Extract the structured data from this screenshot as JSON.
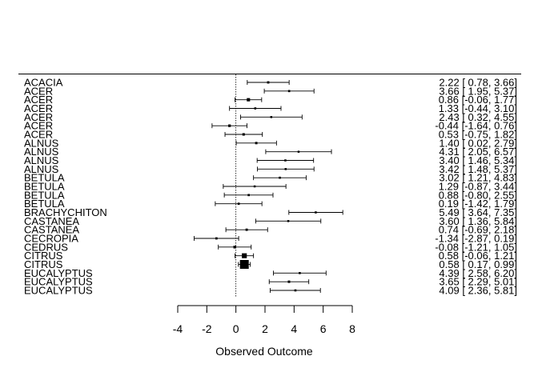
{
  "chart_data": {
    "type": "forest",
    "xlabel": "Observed Outcome",
    "xlim": [
      -4,
      8
    ],
    "xticks": [
      -4,
      -2,
      0,
      2,
      4,
      6,
      8
    ],
    "reference_line": 0,
    "studies": [
      {
        "label": "ACACIA",
        "estimate": 2.22,
        "ci_low": 0.78,
        "ci_high": 3.66,
        "text": "2.22 [ 0.78, 3.66]"
      },
      {
        "label": "ACER",
        "estimate": 3.66,
        "ci_low": 1.95,
        "ci_high": 5.37,
        "text": "3.66 [ 1.95, 5.37]"
      },
      {
        "label": "ACER",
        "estimate": 0.86,
        "ci_low": -0.06,
        "ci_high": 1.77,
        "text": "0.86 [-0.06, 1.77]"
      },
      {
        "label": "ACER",
        "estimate": 1.33,
        "ci_low": -0.44,
        "ci_high": 3.1,
        "text": "1.33 [-0.44, 3.10]"
      },
      {
        "label": "ACER",
        "estimate": 2.43,
        "ci_low": 0.32,
        "ci_high": 4.55,
        "text": "2.43 [ 0.32, 4.55]"
      },
      {
        "label": "ACER",
        "estimate": -0.44,
        "ci_low": -1.64,
        "ci_high": 0.76,
        "text": "-0.44 [-1.64, 0.76]"
      },
      {
        "label": "ACER",
        "estimate": 0.53,
        "ci_low": -0.75,
        "ci_high": 1.82,
        "text": "0.53 [-0.75, 1.82]"
      },
      {
        "label": "ALNUS",
        "estimate": 1.4,
        "ci_low": 0.02,
        "ci_high": 2.79,
        "text": "1.40 [ 0.02, 2.79]"
      },
      {
        "label": "ALNUS",
        "estimate": 4.31,
        "ci_low": 2.05,
        "ci_high": 6.57,
        "text": "4.31 [ 2.05, 6.57]"
      },
      {
        "label": "ALNUS",
        "estimate": 3.4,
        "ci_low": 1.46,
        "ci_high": 5.34,
        "text": "3.40 [ 1.46, 5.34]"
      },
      {
        "label": "ALNUS",
        "estimate": 3.42,
        "ci_low": 1.48,
        "ci_high": 5.37,
        "text": "3.42 [ 1.48, 5.37]"
      },
      {
        "label": "BETULA",
        "estimate": 3.02,
        "ci_low": 1.21,
        "ci_high": 4.83,
        "text": "3.02 [ 1.21, 4.83]"
      },
      {
        "label": "BETULA",
        "estimate": 1.29,
        "ci_low": -0.87,
        "ci_high": 3.44,
        "text": "1.29 [-0.87, 3.44]"
      },
      {
        "label": "BETULA",
        "estimate": 0.88,
        "ci_low": -0.8,
        "ci_high": 2.55,
        "text": "0.88 [-0.80, 2.55]"
      },
      {
        "label": "BETULA",
        "estimate": 0.19,
        "ci_low": -1.42,
        "ci_high": 1.79,
        "text": "0.19 [-1.42, 1.79]"
      },
      {
        "label": "BRACHYCHITON",
        "estimate": 5.49,
        "ci_low": 3.64,
        "ci_high": 7.35,
        "text": "5.49 [ 3.64, 7.35]"
      },
      {
        "label": "CASTANEA",
        "estimate": 3.6,
        "ci_low": 1.36,
        "ci_high": 5.84,
        "text": "3.60 [ 1.36, 5.84]"
      },
      {
        "label": "CASTANEA",
        "estimate": 0.74,
        "ci_low": -0.69,
        "ci_high": 2.18,
        "text": "0.74 [-0.69, 2.18]"
      },
      {
        "label": "CECROPIA",
        "estimate": -1.34,
        "ci_low": -2.87,
        "ci_high": 0.19,
        "text": "-1.34 [-2.87, 0.19]"
      },
      {
        "label": "CEDRUS",
        "estimate": -0.08,
        "ci_low": -1.21,
        "ci_high": 1.05,
        "text": "-0.08 [-1.21, 1.05]"
      },
      {
        "label": "CITRUS",
        "estimate": 0.58,
        "ci_low": -0.06,
        "ci_high": 1.21,
        "text": "0.58 [-0.06, 1.21]"
      },
      {
        "label": "CITRUS",
        "estimate": 0.58,
        "ci_low": 0.17,
        "ci_high": 0.99,
        "text": "0.58 [ 0.17, 0.99]"
      },
      {
        "label": "EUCALYPTUS",
        "estimate": 4.39,
        "ci_low": 2.58,
        "ci_high": 6.2,
        "text": "4.39 [ 2.58, 6.20]"
      },
      {
        "label": "EUCALYPTUS",
        "estimate": 3.65,
        "ci_low": 2.29,
        "ci_high": 5.01,
        "text": "3.65 [ 2.29, 5.01]"
      },
      {
        "label": "EUCALYPTUS",
        "estimate": 4.09,
        "ci_low": 2.36,
        "ci_high": 5.81,
        "text": "4.09 [ 2.36, 5.81]"
      }
    ]
  }
}
